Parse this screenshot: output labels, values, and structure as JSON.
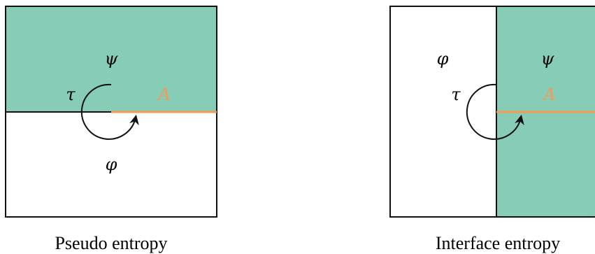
{
  "colors": {
    "fill": "#86ccb7",
    "line": "#111111",
    "cut": "#f39a57",
    "background": "#ffffff"
  },
  "left_panel": {
    "upper_label": "ψ",
    "lower_label": "φ",
    "tau_label": "τ",
    "cut_label": "A",
    "caption": "Pseudo entropy"
  },
  "right_panel": {
    "left_label": "φ",
    "right_label": "ψ",
    "tau_label": "τ",
    "cut_label": "A",
    "caption": "Interface entropy"
  }
}
